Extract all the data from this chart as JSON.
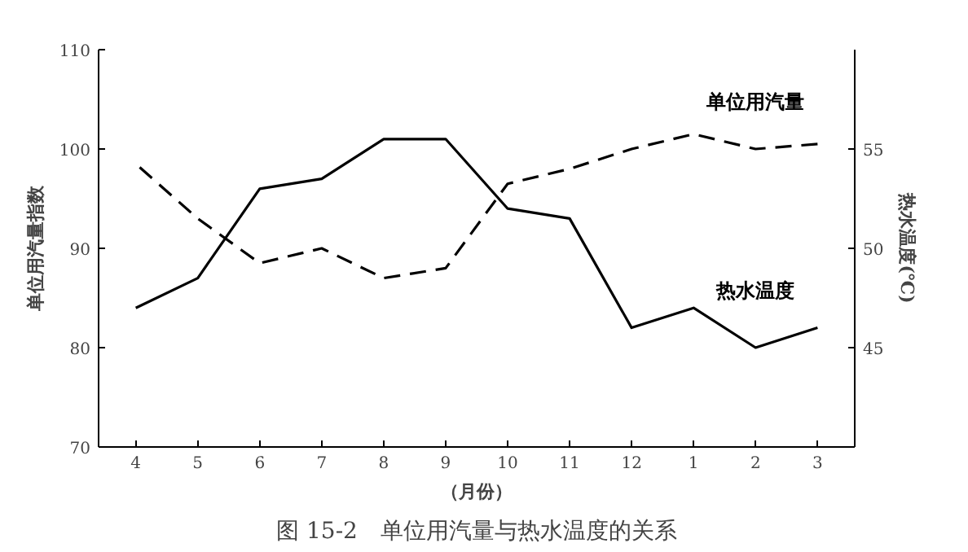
{
  "chart_data": {
    "type": "line",
    "xlabel": "（月份）",
    "ylabel": "单位用汽量指数",
    "y2label": "热水温度(℃)",
    "categories": [
      "4",
      "5",
      "6",
      "7",
      "8",
      "9",
      "10",
      "11",
      "12",
      "1",
      "2",
      "3"
    ],
    "series": [
      {
        "name": "单位用汽量",
        "color": "#000000",
        "line_style": "dashed",
        "values": [
          98.5,
          93,
          88.5,
          90,
          87,
          88,
          96.5,
          98,
          100,
          101.5,
          100,
          100.5
        ]
      },
      {
        "name": "热水温度",
        "color": "#000000",
        "line_style": "solid",
        "axis": "y2",
        "values": [
          47,
          48.5,
          53,
          53.5,
          55.5,
          55.5,
          52,
          51.5,
          46,
          47,
          45,
          46
        ]
      }
    ],
    "ylim": [
      70,
      110
    ],
    "yticks": [
      70,
      80,
      90,
      100,
      110
    ],
    "y2lim": [
      40,
      60
    ],
    "y2ticks": [
      45,
      50,
      55
    ],
    "grid": false,
    "marker": "none",
    "annotations": [
      "图 15-2　单位用汽量与热水温度的关系"
    ]
  }
}
